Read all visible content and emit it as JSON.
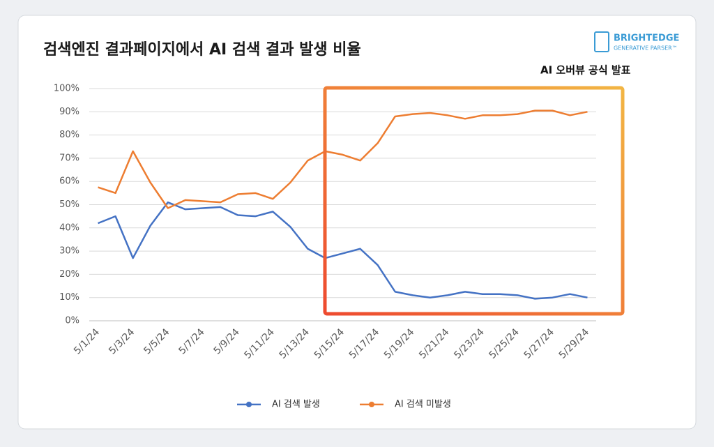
{
  "chart_data": {
    "type": "line",
    "title": "검색엔진 결과페이지에서 AI 검색 결과 발생 비율",
    "annotation": "AI 오버뷰 공식 발표",
    "logo": {
      "brand": "BRIGHTEDGE",
      "product": "GENERATIVE PARSER™"
    },
    "categories": [
      "5/1/24",
      null,
      "5/3/24",
      null,
      "5/5/24",
      null,
      "5/7/24",
      null,
      "5/9/24",
      null,
      "5/11/24",
      null,
      "5/13/24",
      null,
      "5/15/24",
      null,
      "5/17/24",
      null,
      "5/19/24",
      null,
      "5/21/24",
      null,
      "5/23/24",
      null,
      "5/25/24",
      null,
      "5/27/24",
      null,
      "5/29/24"
    ],
    "series": [
      {
        "name": "AI 검색 발생",
        "color": "#4472c4",
        "values": [
          42,
          45,
          27,
          41,
          51,
          48,
          48.5,
          49,
          45.5,
          45,
          47,
          40.5,
          31,
          27,
          29,
          31,
          24,
          12.5,
          11,
          10,
          11,
          12.5,
          11.5,
          11.5,
          11,
          9.5,
          10,
          11.5,
          10
        ]
      },
      {
        "name": "AI 검색 미발생",
        "color": "#ed7d31",
        "values": [
          57.5,
          55,
          73,
          59.5,
          48.5,
          52,
          51.5,
          51,
          54.5,
          55,
          52.5,
          59.5,
          69,
          73,
          71.5,
          69,
          76.5,
          88,
          89,
          89.5,
          88.5,
          87,
          88.5,
          88.5,
          89,
          90.5,
          90.5,
          88.5,
          90
        ]
      }
    ],
    "ylim": [
      0,
      100
    ],
    "yticks": [
      {
        "value": 0,
        "label": "0%"
      },
      {
        "value": 10,
        "label": "10%"
      },
      {
        "value": 20,
        "label": "20%"
      },
      {
        "value": 30,
        "label": "30%"
      },
      {
        "value": 40,
        "label": "40%"
      },
      {
        "value": 50,
        "label": "50%"
      },
      {
        "value": 60,
        "label": "60%"
      },
      {
        "value": 70,
        "label": "70%"
      },
      {
        "value": 80,
        "label": "80%"
      },
      {
        "value": 90,
        "label": "90%"
      },
      {
        "value": 100,
        "label": "100%"
      }
    ],
    "grid": true,
    "legend": "bottom"
  }
}
